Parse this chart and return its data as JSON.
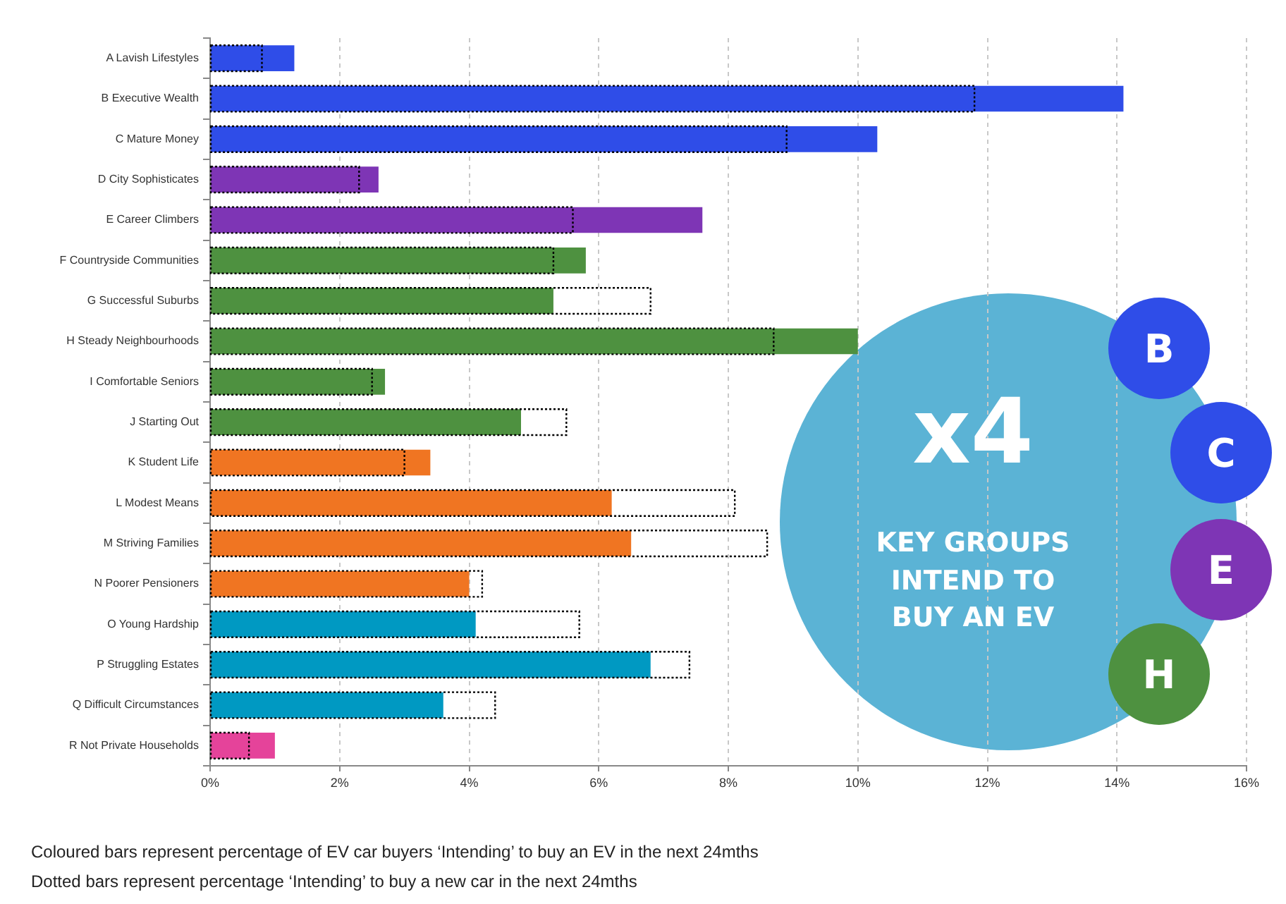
{
  "chart_data": {
    "type": "bar",
    "orientation": "horizontal",
    "categories": [
      "A Lavish Lifestyles",
      "B Executive Wealth",
      "C Mature Money",
      "D City Sophisticates",
      "E Career Climbers",
      "F Countryside Communities",
      "G Successful Suburbs",
      "H Steady Neighbourhoods",
      "I Comfortable Seniors",
      "J Starting Out",
      "K Student Life",
      "L Modest Means",
      "M Striving Families",
      "N Poorer Pensioners",
      "O Young Hardship",
      "P Struggling Estates",
      "Q Difficult Circumstances",
      "R Not Private Households"
    ],
    "series": [
      {
        "values": [
          1.3,
          14.1,
          10.3,
          2.6,
          7.6,
          5.8,
          5.3,
          10.0,
          2.7,
          4.8,
          3.4,
          6.2,
          6.5,
          4.0,
          4.1,
          6.8,
          3.6,
          1.0
        ],
        "colors": [
          "#2f4de8",
          "#2f4de8",
          "#2f4de8",
          "#7e35b5",
          "#7e35b5",
          "#4e9140",
          "#4e9140",
          "#4e9140",
          "#4e9140",
          "#4e9140",
          "#f07522",
          "#f07522",
          "#f07522",
          "#f07522",
          "#0099c2",
          "#0099c2",
          "#0099c2",
          "#e5439a"
        ]
      },
      {
        "values": [
          0.8,
          11.8,
          8.9,
          2.3,
          5.6,
          5.3,
          6.8,
          8.7,
          2.5,
          5.5,
          3.0,
          8.1,
          8.6,
          4.2,
          5.7,
          7.4,
          4.4,
          0.6
        ],
        "color": "#000000",
        "line_style": "dotted"
      }
    ],
    "xlim": [
      0,
      16
    ],
    "xticks": [
      {
        "value": 0,
        "label": "0%"
      },
      {
        "value": 2,
        "label": "2%"
      },
      {
        "value": 4,
        "label": "4%"
      },
      {
        "value": 6,
        "label": "6%"
      },
      {
        "value": 8,
        "label": "8%"
      },
      {
        "value": 10,
        "label": "10%"
      },
      {
        "value": 12,
        "label": "12%"
      },
      {
        "value": 14,
        "label": "14%"
      },
      {
        "value": 16,
        "label": "16%"
      }
    ],
    "grid": "x",
    "annotations": [
      "Coloured bars represent percentage of EV car buyers ‘Intending’ to buy an EV in the next 24mths",
      "Dotted bars represent percentage ‘Intending’ to buy a new car in the next 24mths",
      "x4",
      "KEY GROUPS INTEND TO BUY AN EV",
      "B",
      "C",
      "E",
      "H"
    ]
  }
}
